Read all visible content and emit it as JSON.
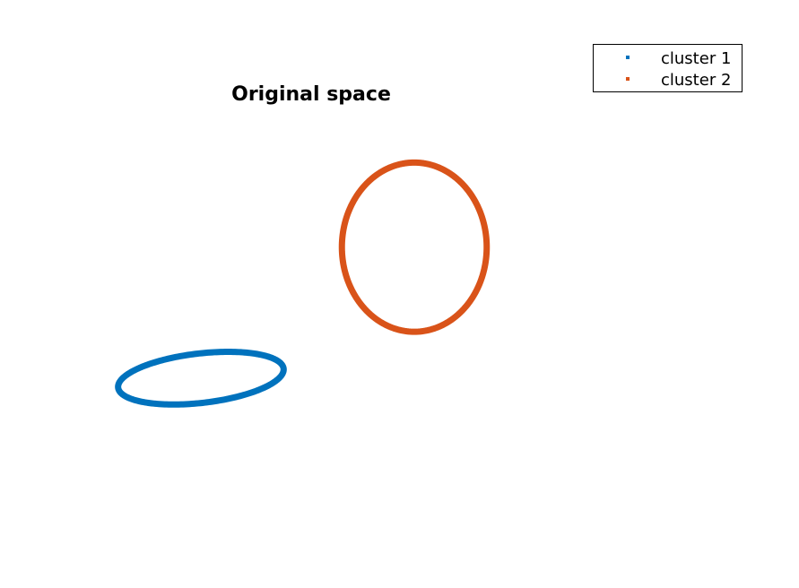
{
  "chart_data": {
    "type": "scatter",
    "title": "Original space",
    "xlabel": "",
    "ylabel": "",
    "axes_visible": false,
    "grid": false,
    "xlim": [
      0,
      10
    ],
    "ylim": [
      0,
      10
    ],
    "legend_position": "top-right",
    "series": [
      {
        "name": "cluster 1",
        "color": "#0072BD",
        "shape": "ellipse",
        "center": [
          2.4,
          3.45
        ],
        "semi_axes": [
          1.1,
          0.45
        ],
        "rotation_deg": 10
      },
      {
        "name": "cluster 2",
        "color": "#D95319",
        "shape": "ellipse",
        "center": [
          5.2,
          5.85
        ],
        "semi_axes": [
          0.95,
          1.55
        ],
        "rotation_deg": 0
      }
    ]
  }
}
